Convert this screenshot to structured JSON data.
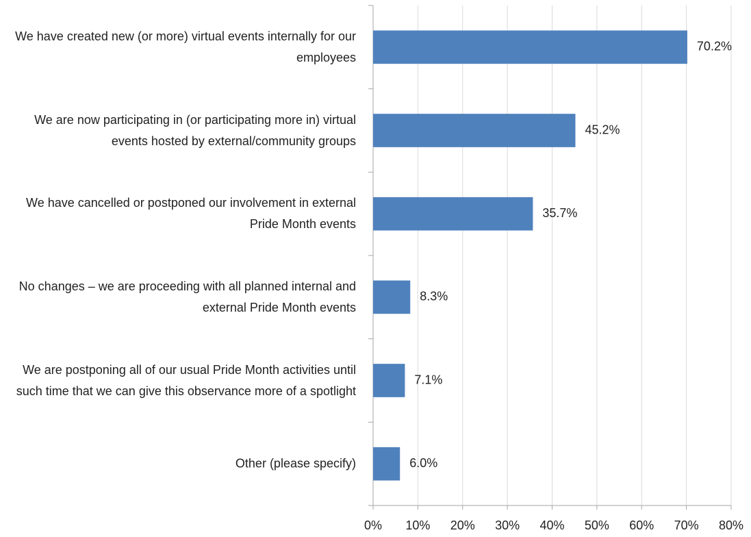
{
  "chart_data": {
    "type": "bar",
    "orientation": "horizontal",
    "categories": [
      "We have created new (or more) virtual events internally for our employees",
      "We are now participating in (or participating more in) virtual events hosted by external/community groups",
      "We have cancelled or postponed our involvement in external Pride Month events",
      "No changes – we are proceeding with all planned internal and external Pride Month events",
      "We are postponing all of our usual Pride Month activities until such time that we can give this observance more of a spotlight",
      "Other (please specify)"
    ],
    "values": [
      70.2,
      45.2,
      35.7,
      8.3,
      7.1,
      6.0
    ],
    "value_labels": [
      "70.2%",
      "45.2%",
      "35.7%",
      "8.3%",
      "7.1%",
      "6.0%"
    ],
    "color": "#4f81bd",
    "xlim": [
      0,
      80
    ],
    "xticks": [
      {
        "value": 0,
        "label": "0%"
      },
      {
        "value": 10,
        "label": "10%"
      },
      {
        "value": 20,
        "label": "20%"
      },
      {
        "value": 30,
        "label": "30%"
      },
      {
        "value": 40,
        "label": "40%"
      },
      {
        "value": 50,
        "label": "50%"
      },
      {
        "value": 60,
        "label": "60%"
      },
      {
        "value": 70,
        "label": "70%"
      },
      {
        "value": 80,
        "label": "80%"
      }
    ],
    "grid": true
  }
}
